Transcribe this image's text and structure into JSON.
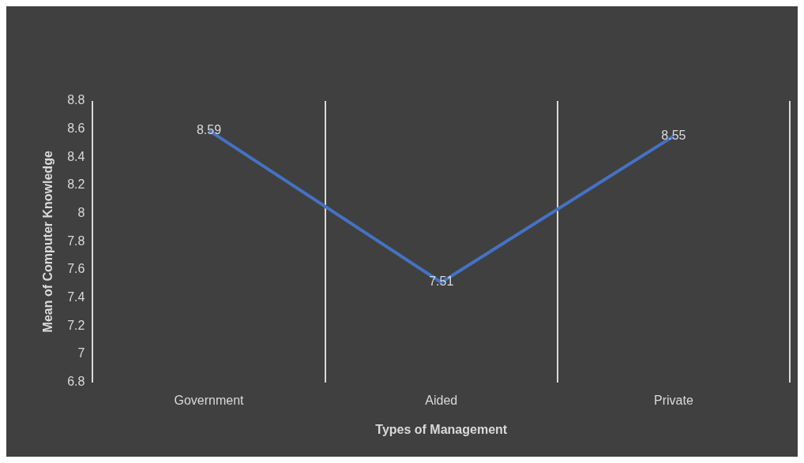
{
  "chart_data": {
    "type": "line",
    "xlabel": "Types of Management",
    "ylabel": "Mean of Computer Knowledge",
    "categories": [
      "Government",
      "Aided",
      "Private"
    ],
    "series": [
      {
        "color": "#4472c4",
        "values": [
          8.59,
          7.51,
          8.55
        ]
      }
    ],
    "ylim": [
      6.8,
      8.8
    ],
    "yticks": [
      6.8,
      7,
      7.2,
      7.4,
      7.6,
      7.8,
      8,
      8.2,
      8.4,
      8.6,
      8.8
    ],
    "grid": "x",
    "data_labels": true,
    "legend": false,
    "marker": "none"
  }
}
